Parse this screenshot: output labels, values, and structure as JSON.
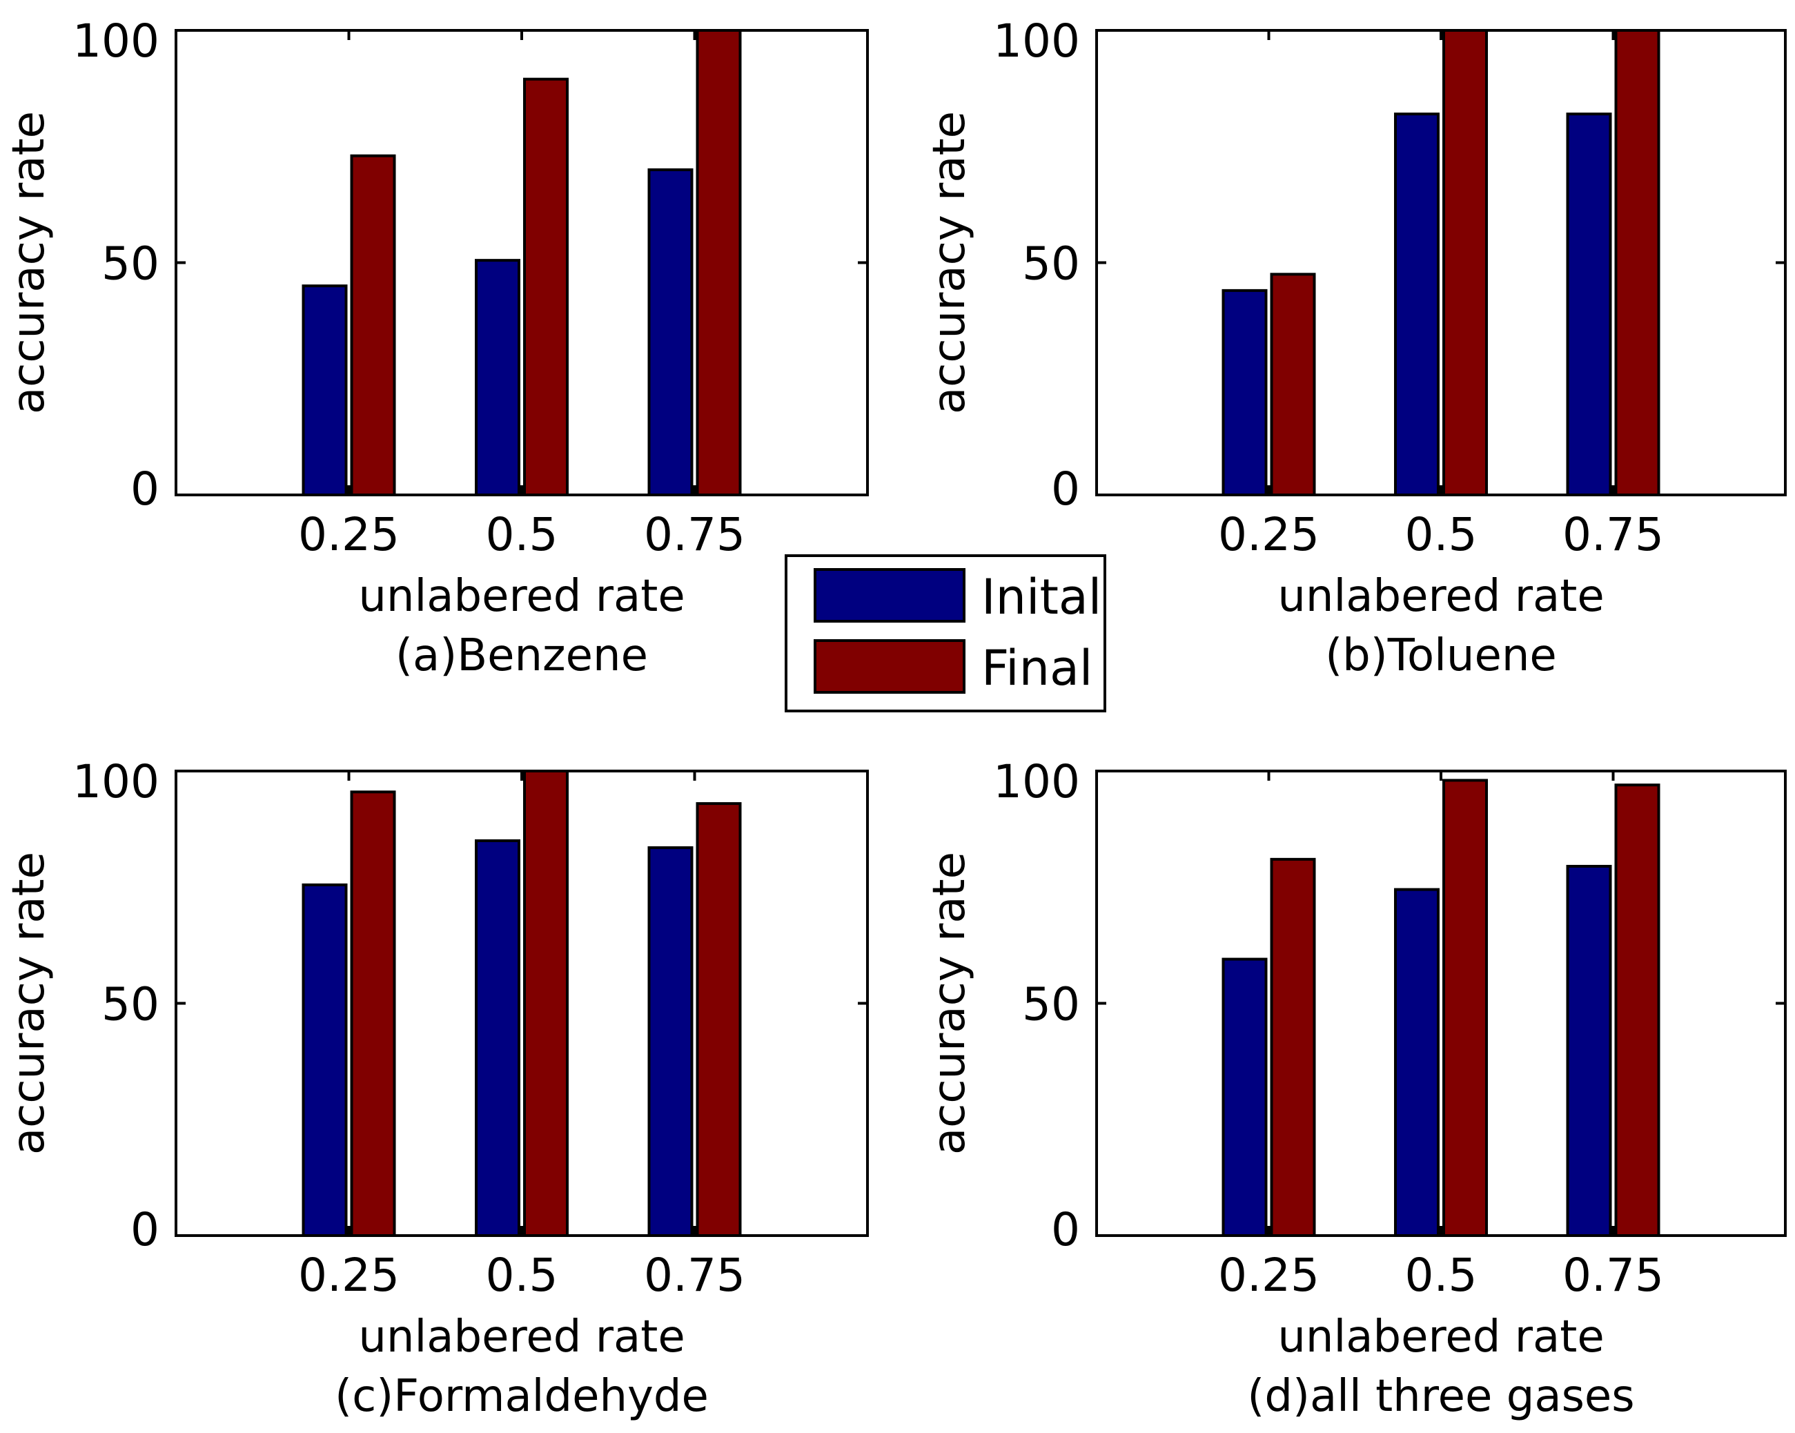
{
  "chart_data": [
    {
      "type": "bar",
      "title": "(a)Benzene",
      "xlabel": "unlabered rate",
      "ylabel": "accuracy rate",
      "categories": [
        "0.25",
        "0.5",
        "0.75"
      ],
      "yticks": [
        "0",
        "50",
        "100"
      ],
      "ylim": [
        0,
        100
      ],
      "series": [
        {
          "name": "Inital",
          "values": [
            45,
            50.5,
            70
          ]
        },
        {
          "name": "Final",
          "values": [
            73,
            89.5,
            100
          ]
        }
      ]
    },
    {
      "type": "bar",
      "title": "(b)Toluene",
      "xlabel": "unlabered rate",
      "ylabel": "accuracy rate",
      "categories": [
        "0.25",
        "0.5",
        "0.75"
      ],
      "yticks": [
        "0",
        "50",
        "100"
      ],
      "ylim": [
        0,
        100
      ],
      "series": [
        {
          "name": "Inital",
          "values": [
            44,
            82,
            82
          ]
        },
        {
          "name": "Final",
          "values": [
            47.5,
            100,
            100
          ]
        }
      ]
    },
    {
      "type": "bar",
      "title": "(c)Formaldehyde",
      "xlabel": "unlabered rate",
      "ylabel": "accuracy rate",
      "categories": [
        "0.25",
        "0.5",
        "0.75"
      ],
      "yticks": [
        "0",
        "50",
        "100"
      ],
      "ylim": [
        0,
        100
      ],
      "series": [
        {
          "name": "Inital",
          "values": [
            75.5,
            85,
            83.5
          ]
        },
        {
          "name": "Final",
          "values": [
            95.5,
            100,
            93
          ]
        }
      ]
    },
    {
      "type": "bar",
      "title": "(d)all three gases",
      "xlabel": "unlabered rate",
      "ylabel": "accuracy rate",
      "categories": [
        "0.25",
        "0.5",
        "0.75"
      ],
      "yticks": [
        "0",
        "50",
        "100"
      ],
      "ylim": [
        0,
        100
      ],
      "series": [
        {
          "name": "Inital",
          "values": [
            59.5,
            74.5,
            79.5
          ]
        },
        {
          "name": "Final",
          "values": [
            81,
            98,
            97
          ]
        }
      ]
    }
  ],
  "legend": {
    "items": [
      {
        "label": "Inital",
        "color": "#000080"
      },
      {
        "label": "Final",
        "color": "#800000"
      }
    ]
  }
}
